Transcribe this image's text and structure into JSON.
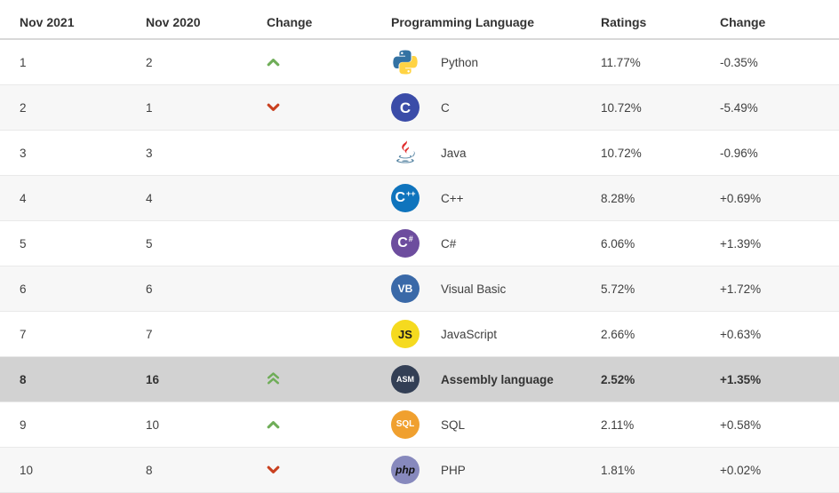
{
  "colors": {
    "up": "#6fad58",
    "down": "#c9401f",
    "zebra": "#f7f7f7",
    "highlight": "#d2d2d2",
    "python_blue": "#3372a3",
    "python_yellow": "#ffd343",
    "java_red": "#e02d2d",
    "java_blue": "#5382a1"
  },
  "table": {
    "headers": {
      "rank_now": "Nov 2021",
      "rank_prev": "Nov 2020",
      "trend": "Change",
      "language": "Programming Language",
      "ratings": "Ratings",
      "ratings_change": "Change"
    },
    "rows": [
      {
        "pos2021": "1",
        "pos2020": "2",
        "change": "up",
        "language": "Python",
        "ratings": "11.77%",
        "ratings_change": "-0.35%",
        "highlighted": false,
        "icon": {
          "type": "svg",
          "name": "python-logo"
        }
      },
      {
        "pos2021": "2",
        "pos2020": "1",
        "change": "down",
        "language": "C",
        "ratings": "10.72%",
        "ratings_change": "-5.49%",
        "highlighted": false,
        "icon": {
          "type": "badge",
          "text": "C",
          "bg": "#3b4ca8",
          "fg": "#ffffff",
          "fontSize": 17
        }
      },
      {
        "pos2021": "3",
        "pos2020": "3",
        "change": "none",
        "language": "Java",
        "ratings": "10.72%",
        "ratings_change": "-0.96%",
        "highlighted": false,
        "icon": {
          "type": "svg",
          "name": "java-logo"
        }
      },
      {
        "pos2021": "4",
        "pos2020": "4",
        "change": "none",
        "language": "C++",
        "ratings": "8.28%",
        "ratings_change": "+0.69%",
        "highlighted": false,
        "icon": {
          "type": "badge",
          "text": "C",
          "suffix": "++",
          "bg": "#0f74bd",
          "fg": "#ffffff",
          "fontSize": 16,
          "suffixSize": 9
        }
      },
      {
        "pos2021": "5",
        "pos2020": "5",
        "change": "none",
        "language": "C#",
        "ratings": "6.06%",
        "ratings_change": "+1.39%",
        "highlighted": false,
        "icon": {
          "type": "badge",
          "text": "C",
          "suffix": "#",
          "bg": "#6d4d9e",
          "fg": "#ffffff",
          "fontSize": 16,
          "suffixSize": 9
        }
      },
      {
        "pos2021": "6",
        "pos2020": "6",
        "change": "none",
        "language": "Visual Basic",
        "ratings": "5.72%",
        "ratings_change": "+1.72%",
        "highlighted": false,
        "icon": {
          "type": "badge",
          "text": "VB",
          "bg": "#3a69a8",
          "fg": "#ffffff",
          "fontSize": 12
        }
      },
      {
        "pos2021": "7",
        "pos2020": "7",
        "change": "none",
        "language": "JavaScript",
        "ratings": "2.66%",
        "ratings_change": "+0.63%",
        "highlighted": false,
        "icon": {
          "type": "badge",
          "text": "JS",
          "bg": "#f5da1f",
          "fg": "#1a1a1a",
          "fontSize": 13
        }
      },
      {
        "pos2021": "8",
        "pos2020": "16",
        "change": "double-up",
        "language": "Assembly language",
        "ratings": "2.52%",
        "ratings_change": "+1.35%",
        "highlighted": true,
        "icon": {
          "type": "badge",
          "text": "ASM",
          "bg": "#333f55",
          "fg": "#ffffff",
          "fontSize": 9
        }
      },
      {
        "pos2021": "9",
        "pos2020": "10",
        "change": "up",
        "language": "SQL",
        "ratings": "2.11%",
        "ratings_change": "+0.58%",
        "highlighted": false,
        "icon": {
          "type": "badge",
          "text": "SQL",
          "bg": "#f0a02f",
          "fg": "#ffffff",
          "fontSize": 10
        }
      },
      {
        "pos2021": "10",
        "pos2020": "8",
        "change": "down",
        "language": "PHP",
        "ratings": "1.81%",
        "ratings_change": "+0.02%",
        "highlighted": false,
        "icon": {
          "type": "badge",
          "text": "php",
          "bg": "#8789bd",
          "fg": "#111111",
          "fontSize": 12,
          "italic": true
        }
      }
    ]
  }
}
